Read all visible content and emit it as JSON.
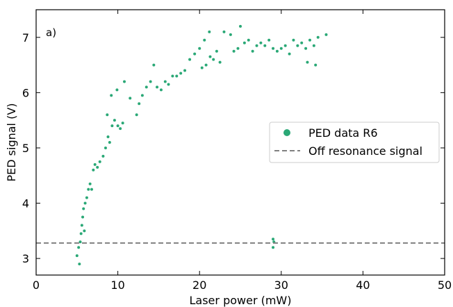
{
  "chart_data": {
    "type": "scatter",
    "panel_label": "a)",
    "xlabel": "Laser power (mW)",
    "ylabel": "PED signal (V)",
    "xlim": [
      0,
      50
    ],
    "ylim": [
      2.7,
      7.5
    ],
    "x_ticks": [
      0,
      10,
      20,
      30,
      40,
      50
    ],
    "y_ticks": [
      3,
      4,
      5,
      6,
      7
    ],
    "x_tick_labels": [
      "0",
      "10",
      "20",
      "30",
      "40",
      "50"
    ],
    "y_tick_labels": [
      "3",
      "4",
      "5",
      "6",
      "7"
    ],
    "grid": false,
    "legend": {
      "placement": "center-right",
      "entries": [
        "PED data R6",
        "Off resonance signal"
      ]
    },
    "series": [
      {
        "name": "PED data R6",
        "kind": "scatter",
        "color": "#2aa876",
        "points": [
          [
            5.0,
            3.05
          ],
          [
            5.2,
            3.2
          ],
          [
            5.3,
            2.9
          ],
          [
            5.4,
            3.3
          ],
          [
            5.5,
            3.45
          ],
          [
            5.6,
            3.6
          ],
          [
            5.7,
            3.75
          ],
          [
            5.8,
            3.9
          ],
          [
            5.9,
            3.5
          ],
          [
            6.0,
            4.0
          ],
          [
            6.2,
            4.1
          ],
          [
            6.4,
            4.25
          ],
          [
            6.6,
            4.35
          ],
          [
            6.8,
            4.25
          ],
          [
            7.0,
            4.6
          ],
          [
            7.2,
            4.7
          ],
          [
            7.5,
            4.65
          ],
          [
            7.8,
            4.75
          ],
          [
            8.2,
            4.85
          ],
          [
            8.5,
            5.0
          ],
          [
            8.8,
            5.2
          ],
          [
            9.0,
            5.1
          ],
          [
            9.3,
            5.4
          ],
          [
            9.6,
            5.5
          ],
          [
            10.0,
            5.4
          ],
          [
            10.3,
            5.35
          ],
          [
            10.6,
            5.45
          ],
          [
            8.7,
            5.6
          ],
          [
            9.2,
            5.95
          ],
          [
            9.9,
            6.05
          ],
          [
            10.8,
            6.2
          ],
          [
            11.5,
            5.9
          ],
          [
            12.3,
            5.6
          ],
          [
            12.6,
            5.8
          ],
          [
            13.0,
            5.95
          ],
          [
            13.5,
            6.1
          ],
          [
            14.0,
            6.2
          ],
          [
            14.4,
            6.5
          ],
          [
            14.8,
            6.1
          ],
          [
            15.3,
            6.05
          ],
          [
            15.8,
            6.2
          ],
          [
            16.2,
            6.15
          ],
          [
            16.7,
            6.3
          ],
          [
            17.2,
            6.3
          ],
          [
            17.7,
            6.35
          ],
          [
            18.2,
            6.4
          ],
          [
            18.8,
            6.6
          ],
          [
            19.4,
            6.7
          ],
          [
            20.0,
            6.8
          ],
          [
            20.6,
            6.95
          ],
          [
            21.2,
            7.1
          ],
          [
            20.3,
            6.45
          ],
          [
            20.8,
            6.5
          ],
          [
            21.3,
            6.65
          ],
          [
            21.7,
            6.6
          ],
          [
            22.1,
            6.75
          ],
          [
            22.5,
            6.55
          ],
          [
            23.0,
            7.1
          ],
          [
            23.8,
            7.05
          ],
          [
            24.2,
            6.75
          ],
          [
            24.7,
            6.8
          ],
          [
            25.0,
            7.2
          ],
          [
            25.5,
            6.9
          ],
          [
            26.0,
            6.95
          ],
          [
            26.5,
            6.75
          ],
          [
            27.0,
            6.85
          ],
          [
            27.5,
            6.9
          ],
          [
            28.0,
            6.85
          ],
          [
            28.5,
            6.95
          ],
          [
            29.0,
            6.8
          ],
          [
            29.5,
            6.75
          ],
          [
            30.0,
            6.8
          ],
          [
            30.5,
            6.85
          ],
          [
            31.0,
            6.7
          ],
          [
            31.5,
            6.95
          ],
          [
            32.0,
            6.85
          ],
          [
            32.5,
            6.9
          ],
          [
            33.0,
            6.8
          ],
          [
            33.5,
            6.95
          ],
          [
            34.0,
            6.85
          ],
          [
            34.5,
            7.0
          ],
          [
            35.5,
            7.05
          ],
          [
            33.2,
            6.55
          ],
          [
            34.2,
            6.5
          ],
          [
            29.0,
            3.2
          ],
          [
            29.1,
            3.3
          ],
          [
            29.0,
            3.35
          ]
        ]
      },
      {
        "name": "Off resonance signal",
        "kind": "hline",
        "color": "#808080",
        "y": 3.28
      }
    ]
  }
}
